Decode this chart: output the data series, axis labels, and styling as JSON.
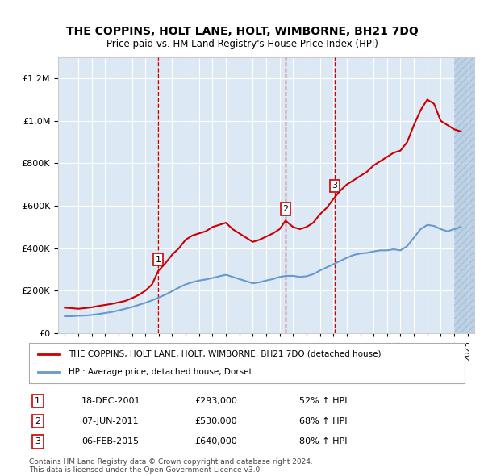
{
  "title": "THE COPPINS, HOLT LANE, HOLT, WIMBORNE, BH21 7DQ",
  "subtitle": "Price paid vs. HM Land Registry's House Price Index (HPI)",
  "property_label": "THE COPPINS, HOLT LANE, HOLT, WIMBORNE, BH21 7DQ (detached house)",
  "hpi_label": "HPI: Average price, detached house, Dorset",
  "property_color": "#cc0000",
  "hpi_color": "#6699cc",
  "background_color": "#dce9f5",
  "hatch_color": "#b0c8e0",
  "vline_color": "#cc0000",
  "sales": [
    {
      "num": 1,
      "date": "18-DEC-2001",
      "price": 293000,
      "pct": "52%",
      "direction": "↑",
      "x": 2001.96
    },
    {
      "num": 2,
      "date": "07-JUN-2011",
      "price": 530000,
      "pct": "68%",
      "direction": "↑",
      "x": 2011.44
    },
    {
      "num": 3,
      "date": "06-FEB-2015",
      "price": 640000,
      "pct": "80%",
      "direction": "↑",
      "x": 2015.1
    }
  ],
  "ylim": [
    0,
    1300000
  ],
  "yticks": [
    0,
    200000,
    400000,
    600000,
    800000,
    1000000,
    1200000
  ],
  "xlim": [
    1994.5,
    2025.5
  ],
  "footer": "Contains HM Land Registry data © Crown copyright and database right 2024.\nThis data is licensed under the Open Government Licence v3.0.",
  "property_x": [
    1995.0,
    1995.5,
    1996.0,
    1996.5,
    1997.0,
    1997.5,
    1998.0,
    1998.5,
    1999.0,
    1999.5,
    2000.0,
    2000.5,
    2001.0,
    2001.5,
    2001.96,
    2002.5,
    2003.0,
    2003.5,
    2004.0,
    2004.5,
    2005.0,
    2005.5,
    2006.0,
    2006.5,
    2007.0,
    2007.5,
    2008.0,
    2008.5,
    2009.0,
    2009.5,
    2010.0,
    2010.5,
    2011.0,
    2011.44,
    2012.0,
    2012.5,
    2013.0,
    2013.5,
    2014.0,
    2014.5,
    2015.1,
    2015.5,
    2016.0,
    2016.5,
    2017.0,
    2017.5,
    2018.0,
    2018.5,
    2019.0,
    2019.5,
    2020.0,
    2020.5,
    2021.0,
    2021.5,
    2022.0,
    2022.5,
    2023.0,
    2023.5,
    2024.0,
    2024.5
  ],
  "property_y": [
    120000,
    118000,
    115000,
    118000,
    122000,
    128000,
    133000,
    138000,
    145000,
    152000,
    165000,
    180000,
    200000,
    230000,
    293000,
    330000,
    370000,
    400000,
    440000,
    460000,
    470000,
    480000,
    500000,
    510000,
    520000,
    490000,
    470000,
    450000,
    430000,
    440000,
    455000,
    470000,
    490000,
    530000,
    500000,
    490000,
    500000,
    520000,
    560000,
    590000,
    640000,
    670000,
    700000,
    720000,
    740000,
    760000,
    790000,
    810000,
    830000,
    850000,
    860000,
    900000,
    980000,
    1050000,
    1100000,
    1080000,
    1000000,
    980000,
    960000,
    950000
  ],
  "hpi_x": [
    1995.0,
    1995.5,
    1996.0,
    1996.5,
    1997.0,
    1997.5,
    1998.0,
    1998.5,
    1999.0,
    1999.5,
    2000.0,
    2000.5,
    2001.0,
    2001.5,
    2002.0,
    2002.5,
    2003.0,
    2003.5,
    2004.0,
    2004.5,
    2005.0,
    2005.5,
    2006.0,
    2006.5,
    2007.0,
    2007.5,
    2008.0,
    2008.5,
    2009.0,
    2009.5,
    2010.0,
    2010.5,
    2011.0,
    2011.5,
    2012.0,
    2012.5,
    2013.0,
    2013.5,
    2014.0,
    2014.5,
    2015.0,
    2015.5,
    2016.0,
    2016.5,
    2017.0,
    2017.5,
    2018.0,
    2018.5,
    2019.0,
    2019.5,
    2020.0,
    2020.5,
    2021.0,
    2021.5,
    2022.0,
    2022.5,
    2023.0,
    2023.5,
    2024.0,
    2024.5
  ],
  "hpi_y": [
    80000,
    80000,
    82000,
    83000,
    86000,
    90000,
    95000,
    100000,
    107000,
    115000,
    123000,
    133000,
    143000,
    155000,
    168000,
    182000,
    198000,
    215000,
    230000,
    240000,
    248000,
    253000,
    260000,
    268000,
    275000,
    265000,
    255000,
    245000,
    235000,
    240000,
    248000,
    255000,
    265000,
    270000,
    270000,
    265000,
    268000,
    278000,
    295000,
    310000,
    325000,
    340000,
    355000,
    368000,
    375000,
    378000,
    385000,
    390000,
    390000,
    395000,
    390000,
    410000,
    450000,
    490000,
    510000,
    505000,
    490000,
    480000,
    490000,
    500000
  ]
}
